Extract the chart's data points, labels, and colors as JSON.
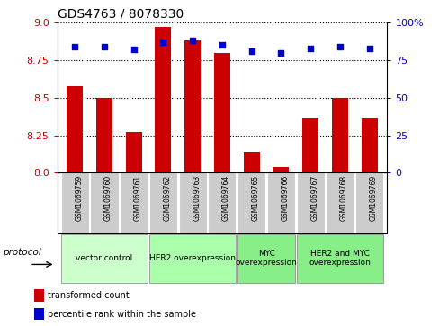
{
  "title": "GDS4763 / 8078330",
  "samples": [
    "GSM1069759",
    "GSM1069760",
    "GSM1069761",
    "GSM1069762",
    "GSM1069763",
    "GSM1069764",
    "GSM1069765",
    "GSM1069766",
    "GSM1069767",
    "GSM1069768",
    "GSM1069769"
  ],
  "transformed_count": [
    8.58,
    8.5,
    8.27,
    8.97,
    8.88,
    8.8,
    8.14,
    8.04,
    8.37,
    8.5,
    8.37
  ],
  "percentile_rank": [
    84,
    84,
    82,
    87,
    88,
    85,
    81,
    80,
    83,
    84,
    83
  ],
  "bar_color": "#cc0000",
  "dot_color": "#0000cc",
  "ylim": [
    8.0,
    9.0
  ],
  "y2lim": [
    0,
    100
  ],
  "yticks": [
    8.0,
    8.25,
    8.5,
    8.75,
    9.0
  ],
  "y2ticks": [
    0,
    25,
    50,
    75,
    100
  ],
  "groups": [
    {
      "label": "vector control",
      "start": 0,
      "end": 2,
      "color": "#ccffcc"
    },
    {
      "label": "HER2 overexpression",
      "start": 3,
      "end": 5,
      "color": "#aaffaa"
    },
    {
      "label": "MYC\noverexpression",
      "start": 6,
      "end": 7,
      "color": "#88ee88"
    },
    {
      "label": "HER2 and MYC\noverexpression",
      "start": 8,
      "end": 10,
      "color": "#88ee88"
    }
  ],
  "protocol_label": "protocol",
  "legend_items": [
    {
      "label": "transformed count",
      "color": "#cc0000"
    },
    {
      "label": "percentile rank within the sample",
      "color": "#0000cc"
    }
  ],
  "tick_color_left": "#cc0000",
  "tick_color_right": "#0000cc",
  "sample_bg_color": "#cccccc",
  "group_colors": [
    "#ccffcc",
    "#aaffaa",
    "#88ee88",
    "#88ee88"
  ],
  "group_labels": [
    "vector control",
    "HER2 overexpression",
    "MYC\noverexpression",
    "HER2 and MYC\noverexpression"
  ],
  "group_ranges": [
    [
      0,
      2
    ],
    [
      3,
      5
    ],
    [
      6,
      7
    ],
    [
      8,
      10
    ]
  ]
}
